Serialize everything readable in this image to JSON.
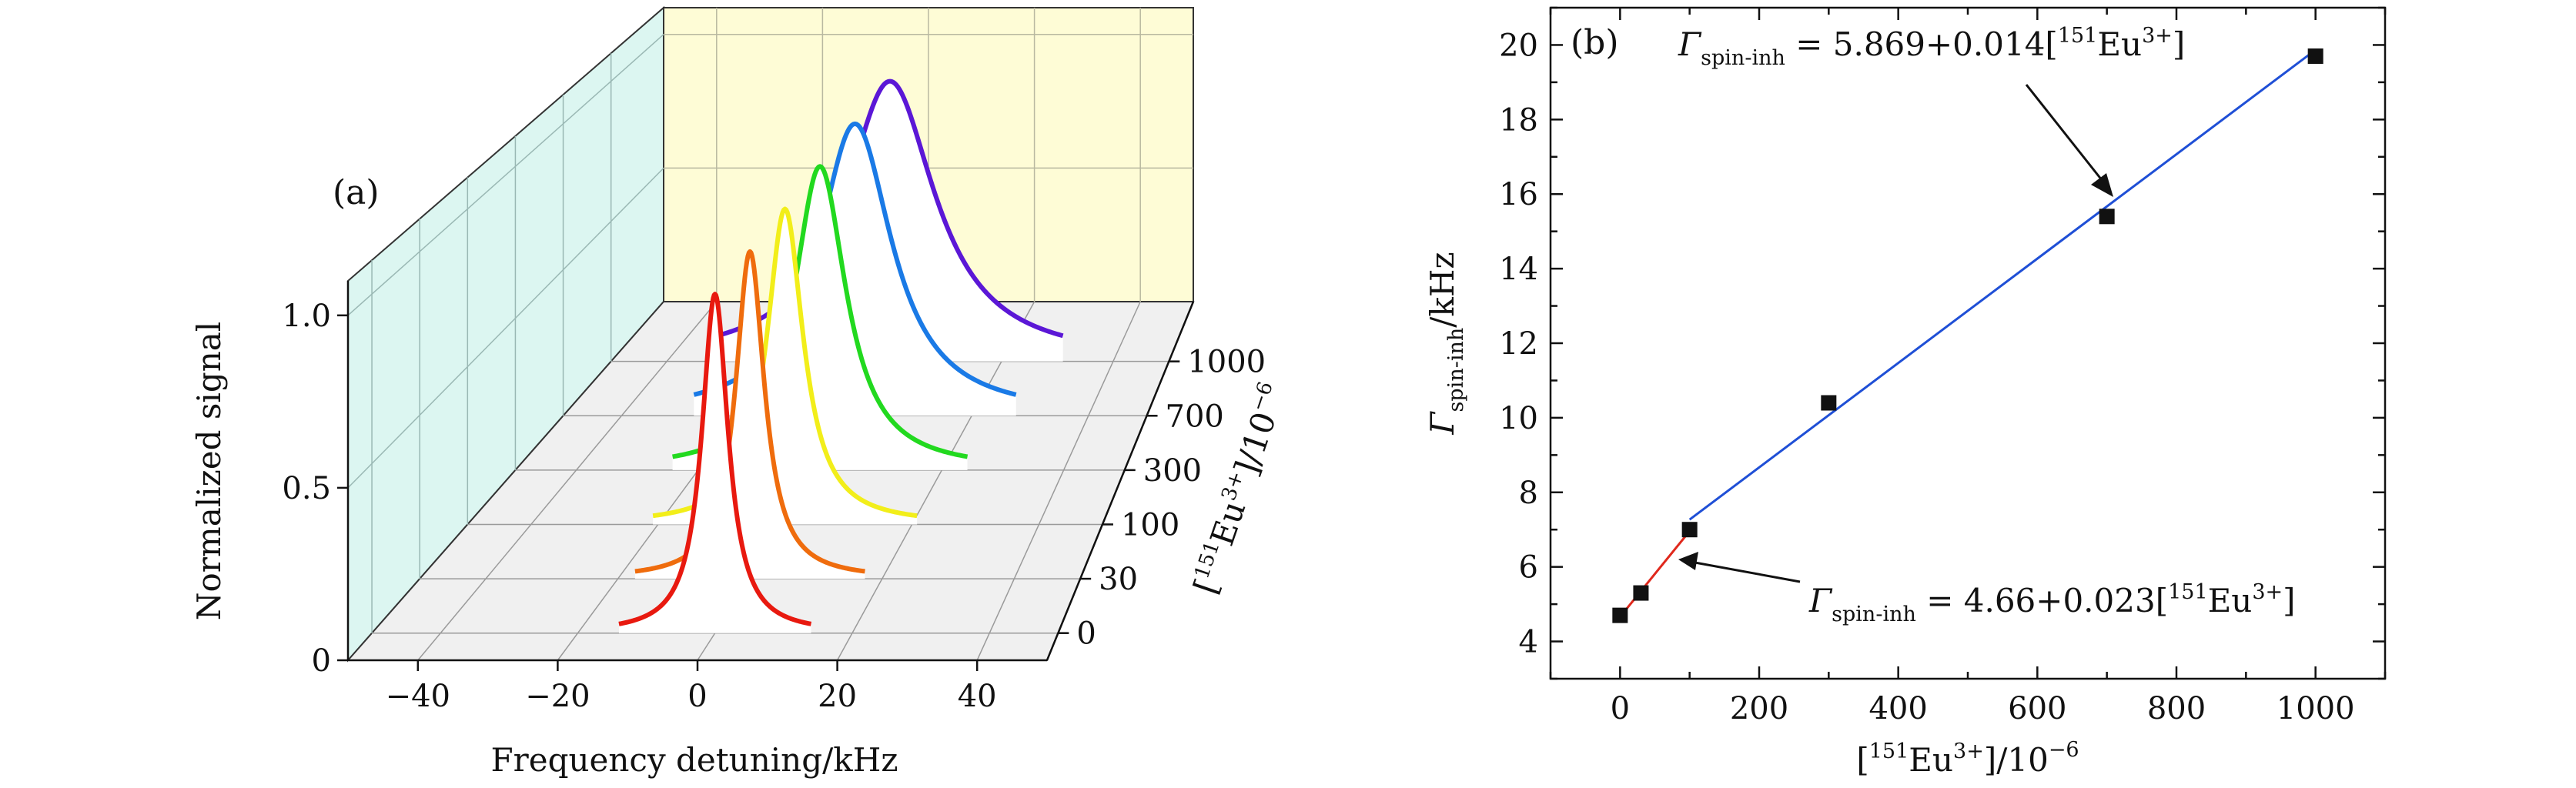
{
  "chart_data": [
    {
      "panel": "(a)",
      "type": "line",
      "subtype": "3d-waterfall",
      "title": "",
      "xlabel": "Frequency detuning/kHz",
      "ylabel": "Normalized signal",
      "zlabel_parts": {
        "open": "[",
        "iso": "151",
        "ion": "Eu",
        "charge": "3+",
        "close": "]/10",
        "exp": "−6"
      },
      "x_ticks": [
        "−40",
        "−20",
        "0",
        "20",
        "40"
      ],
      "y_ticks": [
        "0",
        "0.5",
        "1.0"
      ],
      "xlim": [
        -50,
        50
      ],
      "ylim": [
        0,
        1.1
      ],
      "z_ticks": [
        "0",
        "30",
        "100",
        "300",
        "700",
        "1000"
      ],
      "series": [
        {
          "name": "0",
          "color": "#e8190f",
          "center": 0,
          "fwhm": 4.66
        },
        {
          "name": "30",
          "color": "#ef6c0d",
          "center": 0,
          "fwhm": 5.3
        },
        {
          "name": "100",
          "color": "#f2ee1a",
          "center": 0,
          "fwhm": 7.0
        },
        {
          "name": "300",
          "color": "#22d91f",
          "center": 0,
          "fwhm": 10.4
        },
        {
          "name": "700",
          "color": "#1a7ae6",
          "center": 0,
          "fwhm": 15.4
        },
        {
          "name": "1000",
          "color": "#5b17d6",
          "center": 0,
          "fwhm": 19.7
        }
      ]
    },
    {
      "panel": "(b)",
      "type": "scatter",
      "title": "",
      "xlabel_parts": {
        "open": "[",
        "iso": "151",
        "ion": "Eu",
        "charge": "3+",
        "close": "]/10",
        "exp": "−6"
      },
      "ylabel_parts": {
        "sym": "Γ",
        "sub": "spin-inh",
        "unit": "/kHz"
      },
      "xlim": [
        -100,
        1100
      ],
      "ylim": [
        3,
        21
      ],
      "x_ticks": [
        0,
        200,
        400,
        600,
        800,
        1000
      ],
      "y_ticks": [
        4,
        6,
        8,
        10,
        12,
        14,
        16,
        18,
        20
      ],
      "points": [
        {
          "x": 0,
          "y": 4.7
        },
        {
          "x": 30,
          "y": 5.3
        },
        {
          "x": 100,
          "y": 7.0
        },
        {
          "x": 300,
          "y": 10.4
        },
        {
          "x": 700,
          "y": 15.4
        },
        {
          "x": 1000,
          "y": 19.7
        }
      ],
      "fits": [
        {
          "color": "#e0281c",
          "x_range": [
            0,
            100
          ],
          "intercept": 4.66,
          "slope": 0.023,
          "label": {
            "sym": "Γ",
            "sub": "spin-inh",
            "eq": " = 4.66+0.023[",
            "iso": "151",
            "ion": "Eu",
            "charge": "3+",
            "close": "]"
          }
        },
        {
          "color": "#1f4fd6",
          "x_range": [
            100,
            1000
          ],
          "intercept": 5.869,
          "slope": 0.014,
          "label": {
            "sym": "Γ",
            "sub": "spin-inh",
            "eq": " = 5.869+0.014[",
            "iso": "151",
            "ion": "Eu",
            "charge": "3+",
            "close": "]"
          }
        }
      ]
    }
  ]
}
